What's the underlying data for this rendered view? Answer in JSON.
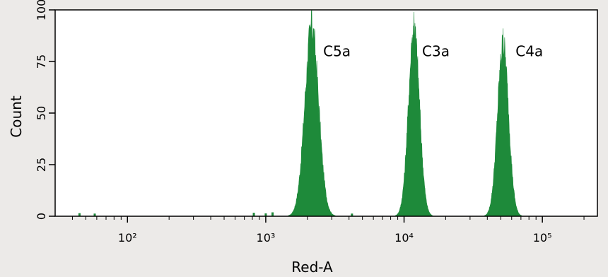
{
  "chart_data": {
    "type": "area",
    "title": "",
    "xlabel": "Red-A",
    "ylabel": "Count",
    "xscale": "log",
    "xlim": [
      30,
      250000
    ],
    "ylim": [
      0,
      100
    ],
    "grid": false,
    "x_ticks": [
      {
        "value": 100,
        "label": "10²"
      },
      {
        "value": 1000,
        "label": "10³"
      },
      {
        "value": 10000,
        "label": "10⁴"
      },
      {
        "value": 100000,
        "label": "10⁵"
      }
    ],
    "y_ticks": [
      {
        "value": 0,
        "label": "0"
      },
      {
        "value": 25,
        "label": "25"
      },
      {
        "value": 50,
        "label": "50"
      },
      {
        "value": 75,
        "label": "75"
      },
      {
        "value": 100,
        "label": "100"
      }
    ],
    "fill_color": "#1e8a3a",
    "series": [
      {
        "peak_x": 2150,
        "peak_y": 100,
        "width_decades": 0.05
      },
      {
        "peak_x": 11800,
        "peak_y": 99,
        "width_decades": 0.04
      },
      {
        "peak_x": 52000,
        "peak_y": 91,
        "width_decades": 0.04
      }
    ],
    "annotations": [
      {
        "text": "C5a",
        "x": 2600,
        "y": 80
      },
      {
        "text": "C3a",
        "x": 13500,
        "y": 80
      },
      {
        "text": "C4a",
        "x": 64000,
        "y": 80
      }
    ]
  }
}
